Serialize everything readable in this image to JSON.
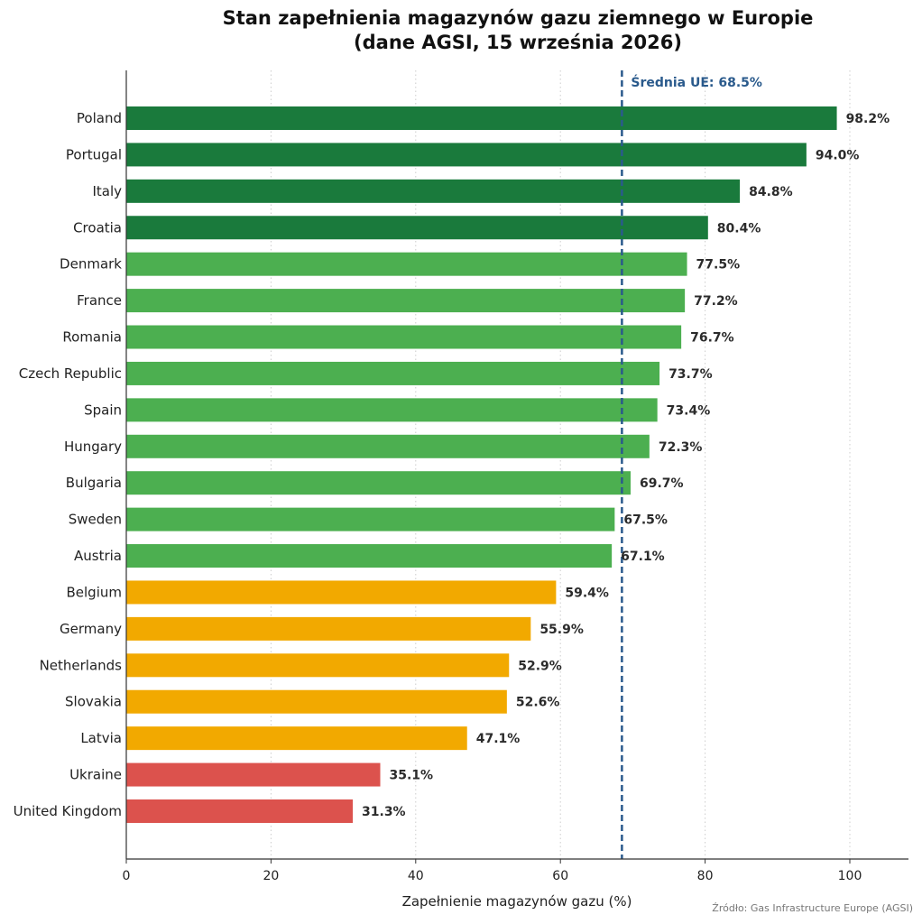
{
  "chart_data": {
    "type": "bar",
    "orientation": "horizontal",
    "title_line1": "Stan zapełnienia magazynów gazu ziemnego w Europie",
    "title_line2": "(dane AGSI, 15 września 2026)",
    "xlabel": "Zapełnienie magazynów gazu (%)",
    "ylabel": "",
    "xlim": [
      0,
      108
    ],
    "xticks": [
      0,
      20,
      40,
      60,
      80,
      100
    ],
    "grid": "vertical-dotted",
    "categories": [
      "Poland",
      "Portugal",
      "Italy",
      "Croatia",
      "Denmark",
      "France",
      "Romania",
      "Czech Republic",
      "Spain",
      "Hungary",
      "Bulgaria",
      "Sweden",
      "Austria",
      "Belgium",
      "Germany",
      "Netherlands",
      "Slovakia",
      "Latvia",
      "Ukraine",
      "United Kingdom"
    ],
    "values": [
      98.2,
      94.0,
      84.8,
      80.4,
      77.5,
      77.2,
      76.7,
      73.7,
      73.4,
      72.3,
      69.7,
      67.5,
      67.1,
      59.4,
      55.9,
      52.9,
      52.6,
      47.1,
      35.1,
      31.3
    ],
    "value_labels": [
      "98.2%",
      "94.0%",
      "84.8%",
      "80.4%",
      "77.5%",
      "77.2%",
      "76.7%",
      "73.7%",
      "73.4%",
      "72.3%",
      "69.7%",
      "67.5%",
      "67.1%",
      "59.4%",
      "55.9%",
      "52.9%",
      "52.6%",
      "47.1%",
      "35.1%",
      "31.3%"
    ],
    "bar_colors": [
      "#1a7a3c",
      "#1a7a3c",
      "#1a7a3c",
      "#1a7a3c",
      "#4caf50",
      "#4caf50",
      "#4caf50",
      "#4caf50",
      "#4caf50",
      "#4caf50",
      "#4caf50",
      "#4caf50",
      "#4caf50",
      "#f2a900",
      "#f2a900",
      "#f2a900",
      "#f2a900",
      "#f2a900",
      "#dc524d",
      "#dc524d"
    ],
    "reference_line": {
      "value": 68.5,
      "label": "Średnia UE: 68.5%",
      "color": "#2a5a8c"
    }
  },
  "footer": {
    "source": "Źródło: Gas Infrastructure Europe (AGSI)"
  }
}
